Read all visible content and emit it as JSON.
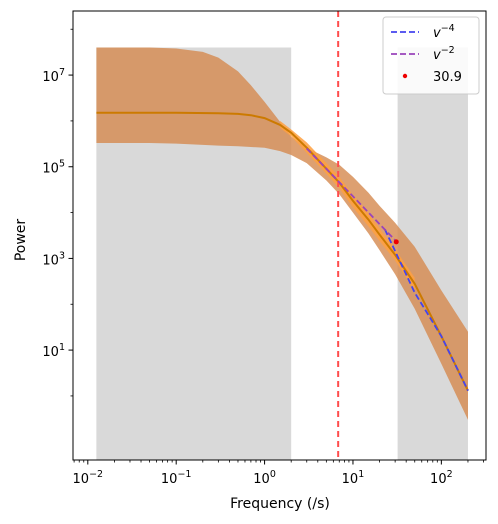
{
  "chart_data": {
    "type": "line",
    "xlabel": "Frequency (/s)",
    "ylabel": "Power",
    "xscale": "log",
    "yscale": "log",
    "xlim": [
      0.0068,
      320
    ],
    "ylim": [
      0.04,
      250000000
    ],
    "x_ticks": [
      {
        "value": 0.01,
        "base": "10",
        "exp": "−2"
      },
      {
        "value": 0.1,
        "base": "10",
        "exp": "−1"
      },
      {
        "value": 1,
        "base": "10",
        "exp": "0"
      },
      {
        "value": 10,
        "base": "10",
        "exp": "1"
      },
      {
        "value": 100,
        "base": "10",
        "exp": "2"
      }
    ],
    "y_ticks": [
      {
        "value": 10,
        "base": "10",
        "exp": "1"
      },
      {
        "value": 1000,
        "base": "10",
        "exp": "3"
      },
      {
        "value": 100000,
        "base": "10",
        "exp": "5"
      },
      {
        "value": 10000000,
        "base": "10",
        "exp": "7"
      }
    ],
    "shaded_regions": [
      {
        "x": [
          0.0125,
          2.0
        ],
        "y": [
          0.04,
          40000000
        ],
        "color": "#d9d9d9"
      },
      {
        "x": [
          32,
          200
        ],
        "y": [
          0.04,
          40000000
        ],
        "color": "#d9d9d9"
      }
    ],
    "band": {
      "color": "#d4884d",
      "x": [
        0.0125,
        0.05,
        0.1,
        0.2,
        0.3,
        0.5,
        0.7,
        1.0,
        1.5,
        2.0,
        3.0,
        5.0,
        7.0,
        10,
        15,
        20,
        30,
        50,
        100,
        200
      ],
      "upper": [
        40000000,
        40000000,
        38000000,
        32000000,
        24000000,
        12000000,
        6000000,
        2600000,
        950000,
        450000,
        260000,
        160000,
        110000,
        60000,
        27000,
        14000,
        6000,
        1800,
        200,
        25
      ],
      "lower": [
        330000,
        330000,
        320000,
        300000,
        290000,
        280000,
        270000,
        260000,
        220000,
        180000,
        120000,
        50000,
        25000,
        10000,
        3500,
        1500,
        450,
        80,
        5,
        0.3
      ]
    },
    "median_line": {
      "color": "#cc7a00",
      "x": [
        0.0125,
        0.1,
        0.3,
        0.5,
        0.7,
        1.0,
        1.5,
        2.0,
        3.0,
        5.0,
        7.0,
        10,
        15,
        20,
        30,
        50,
        100,
        200
      ],
      "y": [
        1500000,
        1500000,
        1470000,
        1420000,
        1330000,
        1150000,
        820000,
        550000,
        260000,
        90000,
        45000,
        18000,
        7000,
        3300,
        1200,
        280,
        20,
        1.3
      ]
    },
    "conf_band": {
      "color": "#ffa040",
      "x": [
        1.5,
        2.0,
        3.0,
        5.0,
        7.0,
        10,
        15,
        20,
        30,
        50
      ],
      "upper": [
        1000000,
        650000,
        340000,
        120000,
        60000,
        24000,
        9500,
        4500,
        1600,
        380
      ],
      "lower": [
        700000,
        460000,
        200000,
        70000,
        34000,
        13000,
        5000,
        2400,
        900,
        200
      ]
    },
    "series": [
      {
        "name": "v^{−4}",
        "label_base": "v",
        "label_exp": "−4",
        "style": "dashed",
        "color": "#4444ee",
        "x": [
          23,
          50,
          100,
          200
        ],
        "y": [
          4300,
          180,
          20,
          1.3
        ]
      },
      {
        "name": "v^{−2}",
        "label_base": "v",
        "label_exp": "−2",
        "style": "dashed",
        "color": "#9944bb",
        "x": [
          3,
          5,
          10,
          20,
          30
        ],
        "y": [
          250000,
          90000,
          22500,
          5600,
          2500
        ]
      },
      {
        "name": "30.9",
        "style": "point",
        "color": "#ee0000",
        "x": [
          30.9
        ],
        "y": [
          2300
        ]
      }
    ],
    "vline": {
      "x": 6.8,
      "color": "#ff4d4d",
      "style": "dashed"
    },
    "legend": {
      "placement": "top-right"
    }
  }
}
